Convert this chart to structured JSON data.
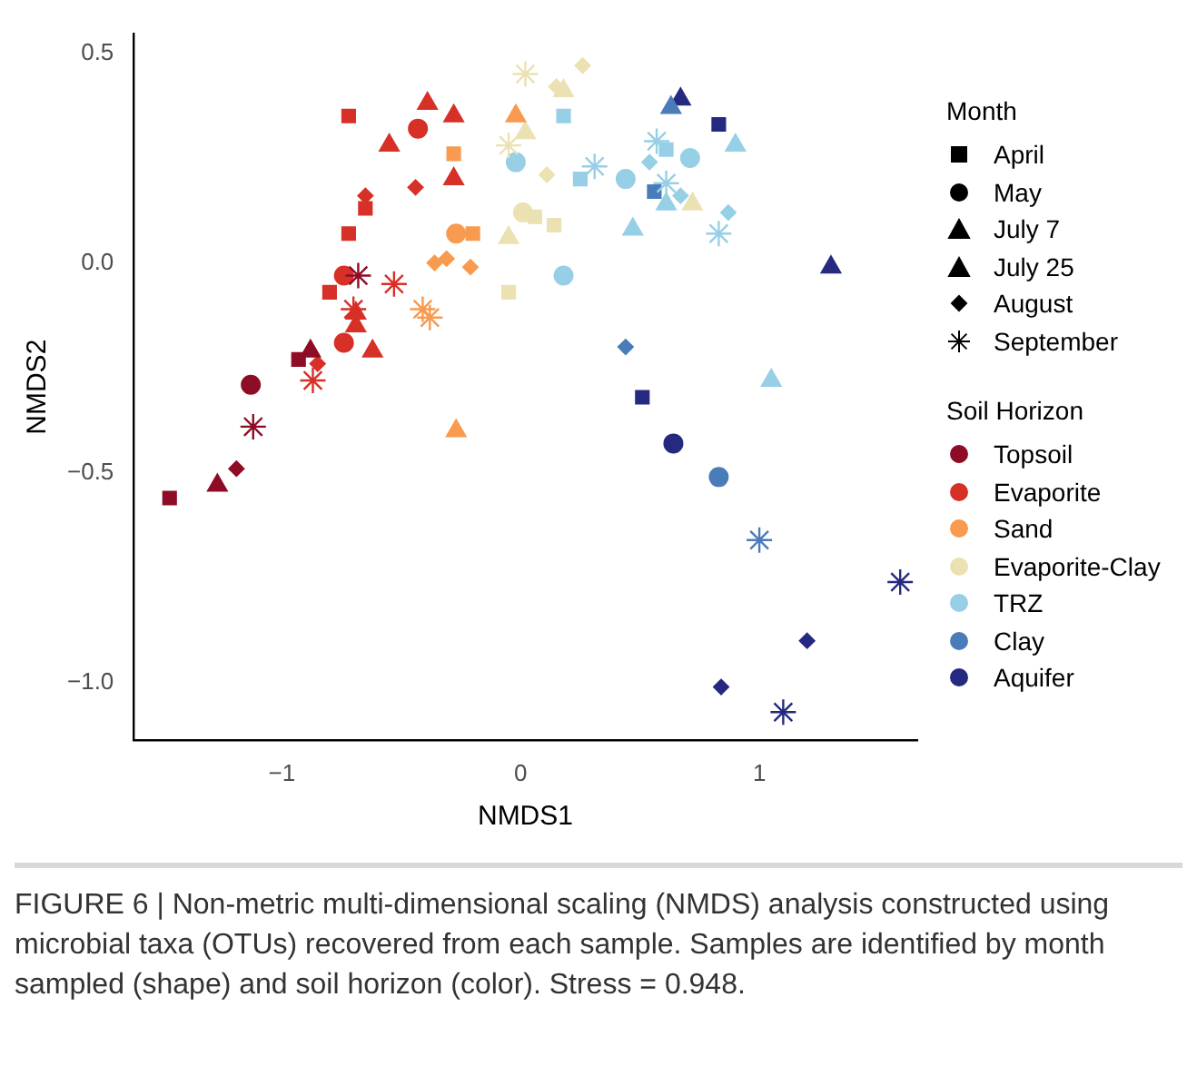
{
  "chart_data": {
    "type": "scatter",
    "xlabel": "NMDS1",
    "ylabel": "NMDS2",
    "legend": "right",
    "legend_title": "Month",
    "xlim": [
      -1.62,
      1.66
    ],
    "ylim": [
      -1.136,
      0.545
    ],
    "xticks": [
      {
        "value": -1,
        "label": "−1"
      },
      0,
      1
    ],
    "yticks": [
      {
        "value": -1,
        "label": "−1.0"
      },
      {
        "value": -0.5,
        "label": "−0.5"
      },
      {
        "value": 0,
        "label": "0.0"
      },
      {
        "value": 0.5,
        "label": "0.5"
      }
    ],
    "annotations": [
      "Soil Horizon",
      "FIGURE 6 | Non-metric multi-dimensional scaling (NMDS) analysis constructed using microbial taxa (OTUs) recovered from each sample. Samples are identified by month sampled (shape) and soil horizon (color). Stress = 0.948."
    ],
    "series": [
      {
        "name": "April",
        "color": "#000000",
        "marker": "square"
      },
      {
        "name": "May",
        "color": "#000000",
        "marker": "circle"
      },
      {
        "name": "July 7",
        "color": "#000000",
        "marker": "triangle"
      },
      {
        "name": "July 25",
        "color": "#000000",
        "marker": "triangle"
      },
      {
        "name": "August",
        "color": "#000000",
        "marker": "diamond"
      },
      {
        "name": "September",
        "color": "#000000",
        "marker": "cross"
      },
      {
        "name": "Topsoil",
        "color": "#8e0c25",
        "marker": "circle"
      },
      {
        "name": "Evaporite",
        "color": "#d73027",
        "marker": "circle"
      },
      {
        "name": "Sand",
        "color": "#f89a4f",
        "marker": "circle"
      },
      {
        "name": "Evaporite-Clay",
        "color": "#ebe1b3",
        "marker": "circle"
      },
      {
        "name": "TRZ",
        "color": "#96cfe6",
        "marker": "circle"
      },
      {
        "name": "Clay",
        "color": "#4a7cb9",
        "marker": "circle"
      },
      {
        "name": "Aquifer",
        "color": "#252a80",
        "marker": "circle"
      },
      {
        "color": "#8e0c25",
        "marker": "square",
        "x": [
          -1.47,
          -0.93
        ],
        "values": [
          -0.56,
          -0.23
        ]
      },
      {
        "color": "#8e0c25",
        "marker": "triangle",
        "x": [
          -1.27,
          -0.88
        ],
        "values": [
          -0.53,
          -0.21
        ]
      },
      {
        "color": "#8e0c25",
        "marker": "diamond",
        "x": [
          -1.19
        ],
        "values": [
          -0.49
        ]
      },
      {
        "color": "#8e0c25",
        "marker": "circle",
        "x": [
          -1.13
        ],
        "values": [
          -0.29
        ]
      },
      {
        "color": "#8e0c25",
        "marker": "cross",
        "x": [
          -1.12,
          -0.68
        ],
        "values": [
          -0.39,
          -0.03
        ]
      },
      {
        "color": "#d73027",
        "marker": "square",
        "x": [
          -0.72,
          -0.65,
          -0.72,
          -0.8
        ],
        "values": [
          0.35,
          0.13,
          0.07,
          -0.07
        ]
      },
      {
        "color": "#d73027",
        "marker": "circle",
        "x": [
          -0.43,
          -0.74,
          -0.74
        ],
        "values": [
          0.32,
          -0.03,
          -0.19
        ]
      },
      {
        "color": "#d73027",
        "marker": "triangle",
        "x": [
          -0.55,
          -0.28,
          -0.62,
          -0.39,
          -0.28,
          -0.69,
          -0.69
        ],
        "values": [
          0.28,
          0.2,
          -0.21,
          0.38,
          0.35,
          -0.12,
          -0.15
        ]
      },
      {
        "color": "#d73027",
        "marker": "diamond",
        "x": [
          -0.65,
          -0.44,
          -0.85
        ],
        "values": [
          0.16,
          0.18,
          -0.24
        ]
      },
      {
        "color": "#d73027",
        "marker": "cross",
        "x": [
          -0.53,
          -0.87,
          -0.7
        ],
        "values": [
          -0.05,
          -0.28,
          -0.11
        ]
      },
      {
        "color": "#f89a4f",
        "marker": "square",
        "x": [
          -0.28,
          -0.2
        ],
        "values": [
          0.26,
          0.07
        ]
      },
      {
        "color": "#f89a4f",
        "marker": "circle",
        "x": [
          -0.27
        ],
        "values": [
          0.07
        ]
      },
      {
        "color": "#f89a4f",
        "marker": "triangle",
        "x": [
          -0.02,
          -0.27
        ],
        "values": [
          0.35,
          -0.4
        ]
      },
      {
        "color": "#f89a4f",
        "marker": "diamond",
        "x": [
          -0.36,
          -0.31,
          -0.21
        ],
        "values": [
          0.0,
          0.01,
          -0.01
        ]
      },
      {
        "color": "#f89a4f",
        "marker": "cross",
        "x": [
          -0.41,
          -0.38
        ],
        "values": [
          -0.11,
          -0.13
        ]
      },
      {
        "color": "#ebe1b3",
        "marker": "square",
        "x": [
          0.06,
          0.14,
          -0.05
        ],
        "values": [
          0.11,
          0.09,
          -0.07
        ]
      },
      {
        "color": "#ebe1b3",
        "marker": "circle",
        "x": [
          0.01
        ],
        "values": [
          0.12
        ]
      },
      {
        "color": "#ebe1b3",
        "marker": "triangle",
        "x": [
          0.72,
          0.18,
          0.02,
          -0.05
        ],
        "values": [
          0.14,
          0.41,
          0.31,
          0.06
        ]
      },
      {
        "color": "#ebe1b3",
        "marker": "diamond",
        "x": [
          0.26,
          0.15,
          0.11
        ],
        "values": [
          0.47,
          0.42,
          0.21
        ]
      },
      {
        "color": "#ebe1b3",
        "marker": "cross",
        "x": [
          0.02,
          -0.05
        ],
        "values": [
          0.45,
          0.28
        ]
      },
      {
        "color": "#96cfe6",
        "marker": "square",
        "x": [
          0.18,
          0.25,
          0.61
        ],
        "values": [
          0.35,
          0.2,
          0.27
        ]
      },
      {
        "color": "#96cfe6",
        "marker": "circle",
        "x": [
          -0.02,
          0.44,
          0.71,
          0.18
        ],
        "values": [
          0.24,
          0.2,
          0.25,
          -0.03
        ]
      },
      {
        "color": "#96cfe6",
        "marker": "triangle",
        "x": [
          0.9,
          1.05,
          0.47,
          0.61
        ],
        "values": [
          0.28,
          -0.28,
          0.08,
          0.14
        ]
      },
      {
        "color": "#96cfe6",
        "marker": "diamond",
        "x": [
          0.54,
          0.67,
          0.87
        ],
        "values": [
          0.24,
          0.16,
          0.12
        ]
      },
      {
        "color": "#96cfe6",
        "marker": "cross",
        "x": [
          0.31,
          0.57,
          0.61,
          0.83
        ],
        "values": [
          0.23,
          0.29,
          0.19,
          0.07
        ]
      },
      {
        "color": "#4a7cb9",
        "marker": "square",
        "x": [
          0.56
        ],
        "values": [
          0.17
        ]
      },
      {
        "color": "#4a7cb9",
        "marker": "circle",
        "x": [
          0.83
        ],
        "values": [
          -0.51
        ]
      },
      {
        "color": "#4a7cb9",
        "marker": "triangle",
        "x": [
          0.63
        ],
        "values": [
          0.37
        ]
      },
      {
        "color": "#4a7cb9",
        "marker": "diamond",
        "x": [
          0.44
        ],
        "values": [
          -0.2
        ]
      },
      {
        "color": "#4a7cb9",
        "marker": "cross",
        "x": [
          1.0
        ],
        "values": [
          -0.66
        ]
      },
      {
        "color": "#252a80",
        "marker": "square",
        "x": [
          0.83,
          0.51
        ],
        "values": [
          0.33,
          -0.32
        ]
      },
      {
        "color": "#252a80",
        "marker": "circle",
        "x": [
          0.64
        ],
        "values": [
          -0.43
        ]
      },
      {
        "color": "#252a80",
        "marker": "triangle",
        "x": [
          1.3,
          0.67
        ],
        "values": [
          -0.01,
          0.39
        ]
      },
      {
        "color": "#252a80",
        "marker": "diamond",
        "x": [
          1.2,
          0.84
        ],
        "values": [
          -0.9,
          -1.01
        ]
      },
      {
        "color": "#252a80",
        "marker": "cross",
        "x": [
          1.59,
          1.1
        ],
        "values": [
          -0.76,
          -1.07
        ]
      }
    ]
  }
}
